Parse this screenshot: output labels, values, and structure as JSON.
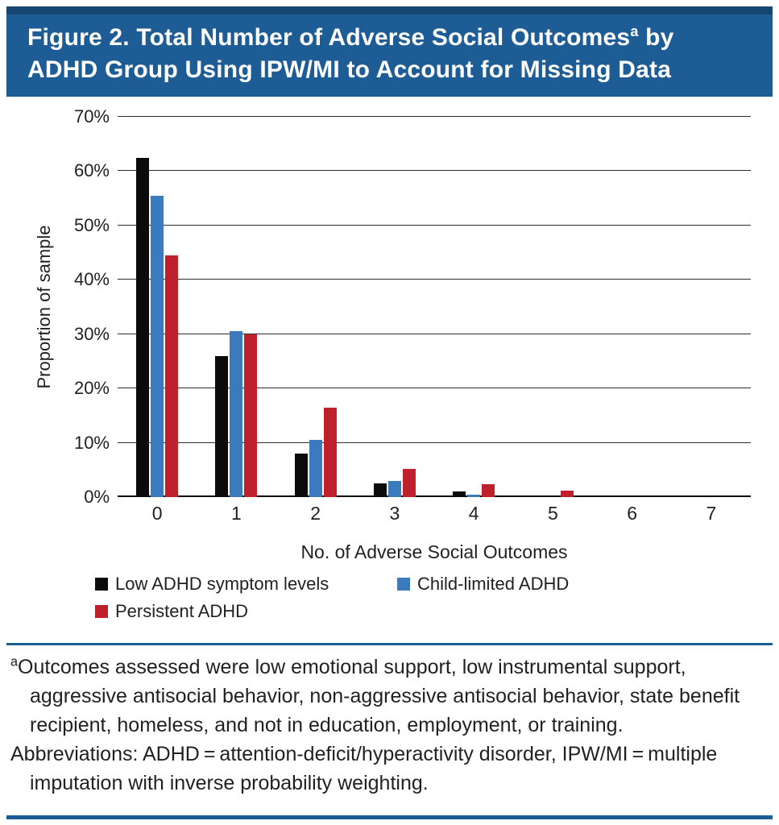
{
  "header": {
    "title_part1": "Figure 2. Total Number of Adverse Social Outcomes",
    "title_superscript": "a",
    "title_part2": " by",
    "title_line2": "ADHD Group Using IPW/MI to Account for Missing Data"
  },
  "chart_data": {
    "type": "bar",
    "title": "Total Number of Adverse Social Outcomes by ADHD Group Using IPW/MI to Account for Missing Data",
    "categories": [
      "0",
      "1",
      "2",
      "3",
      "4",
      "5",
      "6",
      "7"
    ],
    "series": [
      {
        "name": "Low ADHD symptom levels",
        "color": "#0b0b0b",
        "values": [
          62.5,
          26,
          8,
          2.5,
          1,
          0,
          0,
          0
        ]
      },
      {
        "name": "Child-limited ADHD",
        "color": "#3b7abc",
        "values": [
          55.5,
          30.5,
          10.5,
          3,
          0.5,
          0,
          0,
          0
        ]
      },
      {
        "name": "Persistent ADHD",
        "color": "#bf202b",
        "values": [
          44.5,
          30,
          16.5,
          5.2,
          2.4,
          1.2,
          0,
          0
        ]
      }
    ],
    "xlabel": "No. of Adverse Social Outcomes",
    "ylabel": "Proportion of sample",
    "ylim": [
      0,
      70
    ],
    "ytick_step": 10,
    "ytick_suffix": "%",
    "grid": true,
    "legend_position": "bottom"
  },
  "footnote": {
    "superscript": "a",
    "outcomes_note": "Outcomes assessed were low emotional support, low instrumental support, aggressive antisocial behavior, non-aggressive antisocial behavior, state benefit recipient, homeless, and not in education, employment, or training.",
    "abbreviations_note": "Abbreviations: ADHD = attention-deficit/hyperactivity disorder, IPW/MI = multiple imputation with inverse probability weighting."
  },
  "colors": {
    "header_background": "#1e5c96",
    "header_top_stripe": "#16466f",
    "divider": "#1e5c96",
    "text": "#231f20"
  }
}
